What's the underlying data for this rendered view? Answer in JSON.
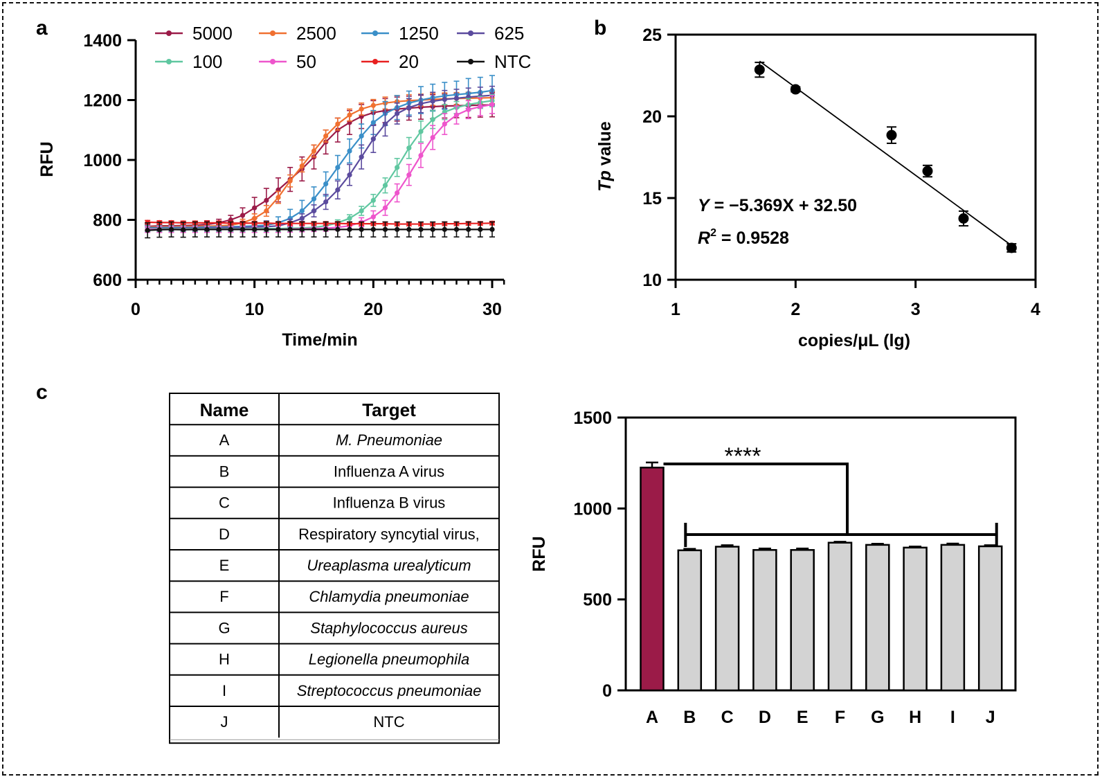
{
  "panel_labels": {
    "a": "a",
    "b": "b",
    "c": "c"
  },
  "chart_data": [
    {
      "panel": "a",
      "type": "line",
      "xlabel": "Time/min",
      "ylabel": "RFU",
      "xlim": [
        0,
        31
      ],
      "ylim": [
        600,
        1400
      ],
      "xticks": [
        0,
        10,
        20,
        30
      ],
      "yticks": [
        600,
        800,
        1000,
        1200,
        1400
      ],
      "x": [
        1,
        2,
        3,
        4,
        5,
        6,
        7,
        8,
        9,
        10,
        11,
        12,
        13,
        14,
        15,
        16,
        17,
        18,
        19,
        20,
        21,
        22,
        23,
        24,
        25,
        26,
        27,
        28,
        29,
        30
      ],
      "series": [
        {
          "name": "5000",
          "color": "#9b1b48",
          "values": [
            778,
            780,
            780,
            781,
            782,
            785,
            790,
            800,
            815,
            840,
            865,
            900,
            935,
            970,
            1010,
            1060,
            1100,
            1125,
            1145,
            1158,
            1165,
            1170,
            1173,
            1176,
            1178,
            1180,
            1181,
            1182,
            1183,
            1184
          ],
          "errors": [
            12,
            12,
            12,
            12,
            12,
            12,
            12,
            15,
            25,
            35,
            40,
            40,
            40,
            40,
            40,
            40,
            40,
            40,
            40,
            40,
            40,
            40,
            40,
            40,
            40,
            40,
            40,
            40,
            40,
            40
          ]
        },
        {
          "name": "2500",
          "color": "#f07030",
          "values": [
            776,
            777,
            777,
            778,
            778,
            779,
            780,
            782,
            790,
            805,
            830,
            875,
            930,
            980,
            1030,
            1080,
            1120,
            1150,
            1170,
            1182,
            1190,
            1195,
            1198,
            1200,
            1202,
            1204,
            1205,
            1206,
            1207,
            1208
          ],
          "errors": [
            10,
            10,
            10,
            10,
            10,
            10,
            10,
            10,
            12,
            15,
            18,
            20,
            20,
            20,
            20,
            20,
            20,
            20,
            20,
            20,
            20,
            20,
            20,
            20,
            20,
            20,
            20,
            20,
            20,
            20
          ]
        },
        {
          "name": "1250",
          "color": "#3a8fc8",
          "values": [
            774,
            774,
            775,
            775,
            775,
            776,
            776,
            777,
            778,
            780,
            782,
            790,
            805,
            830,
            870,
            920,
            975,
            1030,
            1080,
            1125,
            1155,
            1175,
            1190,
            1200,
            1208,
            1214,
            1218,
            1222,
            1226,
            1232
          ],
          "errors": [
            12,
            12,
            12,
            12,
            12,
            12,
            12,
            12,
            12,
            12,
            15,
            20,
            30,
            35,
            40,
            40,
            40,
            40,
            40,
            40,
            40,
            40,
            40,
            45,
            45,
            45,
            45,
            50,
            50,
            50
          ]
        },
        {
          "name": "625",
          "color": "#5b4b9e",
          "values": [
            772,
            772,
            772,
            773,
            773,
            773,
            774,
            774,
            775,
            776,
            777,
            780,
            790,
            805,
            830,
            860,
            900,
            950,
            1010,
            1070,
            1120,
            1155,
            1175,
            1188,
            1196,
            1202,
            1206,
            1210,
            1213,
            1216
          ],
          "errors": [
            10,
            10,
            10,
            10,
            10,
            10,
            10,
            10,
            10,
            10,
            10,
            10,
            12,
            15,
            20,
            25,
            30,
            35,
            40,
            45,
            40,
            35,
            30,
            30,
            30,
            30,
            30,
            30,
            30,
            30
          ]
        },
        {
          "name": "100",
          "color": "#5fc7a0",
          "values": [
            770,
            770,
            770,
            770,
            770,
            770,
            770,
            770,
            770,
            770,
            771,
            771,
            772,
            773,
            775,
            780,
            790,
            805,
            830,
            865,
            915,
            975,
            1040,
            1095,
            1135,
            1160,
            1175,
            1185,
            1192,
            1198
          ],
          "errors": [
            10,
            10,
            10,
            10,
            10,
            10,
            10,
            10,
            10,
            10,
            10,
            10,
            10,
            10,
            10,
            10,
            10,
            12,
            15,
            20,
            25,
            30,
            35,
            35,
            30,
            25,
            20,
            20,
            20,
            20
          ]
        },
        {
          "name": "50",
          "color": "#ee55cc",
          "values": [
            768,
            768,
            768,
            768,
            768,
            768,
            768,
            768,
            768,
            768,
            768,
            768,
            769,
            770,
            771,
            772,
            775,
            780,
            792,
            810,
            840,
            890,
            950,
            1015,
            1075,
            1120,
            1150,
            1168,
            1178,
            1185
          ],
          "errors": [
            10,
            10,
            10,
            10,
            10,
            10,
            10,
            10,
            10,
            10,
            10,
            10,
            10,
            10,
            10,
            10,
            10,
            10,
            15,
            20,
            25,
            30,
            35,
            40,
            40,
            35,
            30,
            30,
            30,
            30
          ]
        },
        {
          "name": "20",
          "color": "#e82020",
          "values": [
            792,
            791,
            791,
            790,
            790,
            790,
            790,
            789,
            789,
            789,
            789,
            788,
            788,
            788,
            788,
            788,
            788,
            787,
            787,
            787,
            787,
            786,
            786,
            786,
            786,
            787,
            787,
            788,
            788,
            789
          ],
          "errors": [
            6,
            6,
            6,
            6,
            6,
            6,
            6,
            6,
            6,
            6,
            6,
            6,
            6,
            6,
            6,
            6,
            6,
            6,
            6,
            6,
            6,
            6,
            6,
            6,
            6,
            6,
            6,
            6,
            6,
            6
          ]
        },
        {
          "name": "NTC",
          "color": "#111111",
          "values": [
            765,
            767,
            768,
            767,
            768,
            768,
            768,
            768,
            768,
            768,
            768,
            768,
            768,
            768,
            768,
            768,
            768,
            768,
            768,
            768,
            768,
            768,
            768,
            768,
            768,
            768,
            768,
            768,
            768,
            768
          ],
          "errors": [
            25,
            25,
            25,
            25,
            25,
            25,
            25,
            25,
            25,
            25,
            25,
            25,
            25,
            25,
            25,
            25,
            25,
            25,
            25,
            25,
            25,
            25,
            25,
            25,
            25,
            25,
            25,
            25,
            25,
            25
          ]
        }
      ]
    },
    {
      "panel": "b",
      "type": "scatter",
      "xlabel": "copies/μL (lg)",
      "ylabel_italic": "Tp",
      "ylabel_rest": " value",
      "xlim": [
        1,
        4
      ],
      "ylim": [
        10,
        25
      ],
      "xticks": [
        1,
        2,
        3,
        4
      ],
      "yticks": [
        10,
        15,
        20,
        25
      ],
      "points": [
        {
          "x": 1.7,
          "y": 22.85,
          "err": 0.45
        },
        {
          "x": 2.0,
          "y": 21.65,
          "err": 0.15
        },
        {
          "x": 2.8,
          "y": 18.85,
          "err": 0.5
        },
        {
          "x": 3.1,
          "y": 16.65,
          "err": 0.35
        },
        {
          "x": 3.4,
          "y": 13.75,
          "err": 0.45
        },
        {
          "x": 3.8,
          "y": 11.95,
          "err": 0.25
        }
      ],
      "fit": {
        "slope": -5.369,
        "intercept": 32.5,
        "x_range": [
          1.7,
          3.8
        ]
      },
      "equation": {
        "y_var": "Y",
        "rhs": " = −5.369X + 32.50",
        "r_var": "R",
        "r_exp": "2",
        "r_rhs": " = 0.9528"
      }
    },
    {
      "panel": "c",
      "type": "bar",
      "ylabel": "RFU",
      "ylim": [
        0,
        1500
      ],
      "yticks": [
        0,
        500,
        1000,
        1500
      ],
      "categories": [
        "A",
        "B",
        "C",
        "D",
        "E",
        "F",
        "G",
        "H",
        "I",
        "J"
      ],
      "values": [
        1225,
        770,
        790,
        772,
        772,
        812,
        800,
        785,
        800,
        792
      ],
      "errors": [
        28,
        8,
        8,
        8,
        8,
        5,
        6,
        6,
        7,
        6
      ],
      "colors": {
        "highlight": "#9b1b48",
        "other": "#d3d3d3"
      },
      "significance": "****"
    }
  ],
  "table": {
    "headers": [
      "Name",
      "Target"
    ],
    "rows": [
      {
        "name": "A",
        "target": "M. Pneumoniae",
        "italic": true
      },
      {
        "name": "B",
        "target": "Influenza A virus",
        "italic": false
      },
      {
        "name": "C",
        "target": "Influenza B virus",
        "italic": false
      },
      {
        "name": "D",
        "target": "Respiratory syncytial virus,",
        "italic": false
      },
      {
        "name": "E",
        "target": "Ureaplasma urealyticum",
        "italic": true
      },
      {
        "name": "F",
        "target": "Chlamydia pneumoniae",
        "italic": true
      },
      {
        "name": "G",
        "target": "Staphylococcus aureus",
        "italic": true
      },
      {
        "name": "H",
        "target": "Legionella pneumophila",
        "italic": true
      },
      {
        "name": "I",
        "target": "Streptococcus pneumoniae",
        "italic": true
      },
      {
        "name": "J",
        "target": "NTC",
        "italic": false
      }
    ]
  }
}
